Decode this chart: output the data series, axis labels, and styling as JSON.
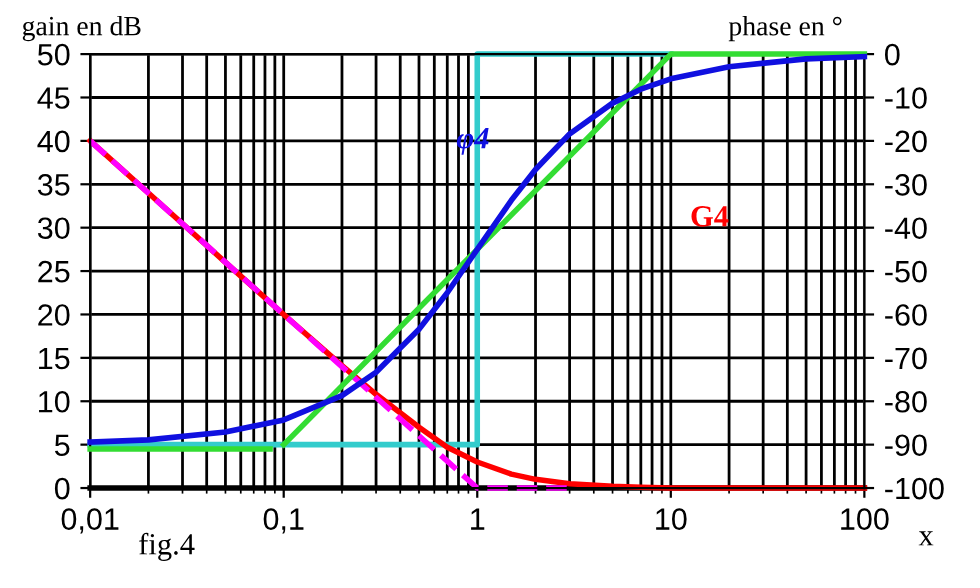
{
  "chart_data": {
    "type": "line",
    "ylabel": "gain en dB",
    "y2label": "phase en °",
    "xlabel": "x",
    "log": "x",
    "xlim": [
      0.01,
      100
    ],
    "xticks": [
      {
        "value": 0.01,
        "label": "0,01"
      },
      {
        "value": 0.1,
        "label": "0,1"
      },
      1,
      10,
      100
    ],
    "ylim": [
      0,
      50
    ],
    "yticks": [
      0,
      5,
      10,
      15,
      20,
      25,
      30,
      35,
      40,
      45,
      50
    ],
    "y2lim": [
      -100,
      0
    ],
    "y2ticks": [
      -100,
      -90,
      -80,
      -70,
      -60,
      -50,
      -40,
      -30,
      -20,
      -10,
      0
    ],
    "grid": true,
    "series": [
      {
        "color": "#33cccc",
        "axis": "y",
        "line_style": "solid",
        "x": [
          0.01,
          1,
          1,
          10
        ],
        "values": [
          5,
          5,
          50,
          50
        ]
      },
      {
        "color": "#33dd33",
        "axis": "y2",
        "line_style": "solid",
        "x": [
          0.01,
          0.085,
          0.09,
          0.1,
          1,
          10,
          100
        ],
        "values": [
          -91,
          -91,
          null,
          -90,
          -45,
          0,
          0
        ]
      },
      {
        "color": "#ff0000",
        "axis": "y",
        "line_style": "solid",
        "x": [
          0.01,
          0.02,
          0.05,
          0.1,
          0.2,
          0.3,
          0.5,
          0.7,
          1,
          1.5,
          2,
          3,
          5,
          7,
          10,
          100
        ],
        "values": [
          40,
          34,
          26,
          20,
          14.1,
          10.8,
          7,
          4.7,
          3,
          1.6,
          1,
          0.5,
          0.2,
          0.1,
          0,
          0
        ]
      },
      {
        "color": "#ff00ff",
        "axis": "y",
        "line_style": "dashed",
        "x": [
          0.01,
          1,
          3
        ],
        "values": [
          40,
          0,
          0
        ]
      },
      {
        "color": "#1010e0",
        "axis": "y2",
        "line_style": "solid",
        "x": [
          0.01,
          0.02,
          0.05,
          0.1,
          0.2,
          0.3,
          0.5,
          0.7,
          1,
          1.5,
          2,
          3,
          5,
          7,
          10,
          20,
          50,
          100
        ],
        "values": [
          -89.4,
          -88.9,
          -87.1,
          -84.3,
          -78.7,
          -73.3,
          -63.4,
          -55,
          -45,
          -33.7,
          -26.6,
          -18.4,
          -11.3,
          -8.1,
          -5.7,
          -2.9,
          -1.1,
          -0.6
        ]
      }
    ],
    "annotations": [
      {
        "text": "φ4",
        "x": 0.95,
        "y": 40
      },
      "G4",
      "fig.4"
    ]
  }
}
